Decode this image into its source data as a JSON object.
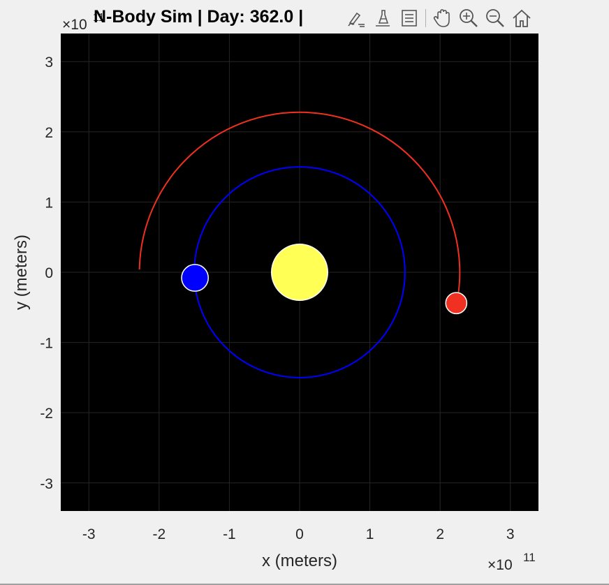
{
  "figure": {
    "title": "N-Body Sim | Day: 362.0 |"
  },
  "chart_data": {
    "type": "scatter",
    "title": "N-Body Sim | Day: 362.0 |",
    "xlabel": "x (meters)",
    "ylabel": "y (meters)",
    "x_exponent_base": "×10",
    "x_exponent_power": "11",
    "y_exponent_base": "×10",
    "y_exponent_power": "11",
    "xlim": [
      -3.4,
      3.4
    ],
    "ylim": [
      -3.4,
      3.4
    ],
    "xticks": [
      -3,
      -2,
      -1,
      0,
      1,
      2,
      3
    ],
    "yticks": [
      -3,
      -2,
      -1,
      0,
      1,
      2,
      3
    ],
    "xtick_labels": [
      "-3",
      "-2",
      "-1",
      "0",
      "1",
      "2",
      "3"
    ],
    "ytick_labels": [
      "-3",
      "-2",
      "-1",
      "0",
      "1",
      "2",
      "3"
    ],
    "grid": true,
    "background_color": "#000000",
    "bodies": [
      {
        "x": 0.0,
        "y": 0.0,
        "radius": 0.4,
        "color": "#ffff55"
      },
      {
        "x": -1.49,
        "y": -0.08,
        "radius": 0.19,
        "color": "#0000ff"
      },
      {
        "x": 2.23,
        "y": -0.44,
        "radius": 0.15,
        "color": "#f03020"
      }
    ],
    "trails": [
      {
        "color": "#0000ff",
        "shape": "circle",
        "cx": 0.0,
        "cy": 0.0,
        "r": 1.5
      },
      {
        "color": "#f03020",
        "shape": "arc",
        "cx": 0.0,
        "cy": 0.0,
        "r": 2.28,
        "start_point": [
          2.26,
          -0.3
        ],
        "end_point": [
          -2.28,
          0.04
        ]
      }
    ]
  },
  "toolbar": {
    "items": [
      {
        "name": "brush-icon"
      },
      {
        "name": "data-tips-icon"
      },
      {
        "name": "legend-icon"
      },
      {
        "name": "pan-icon"
      },
      {
        "name": "zoom-in-icon"
      },
      {
        "name": "zoom-out-icon"
      },
      {
        "name": "home-icon"
      }
    ]
  }
}
